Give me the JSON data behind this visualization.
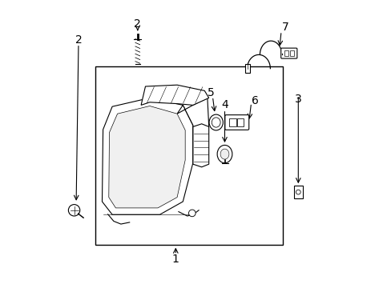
{
  "bg_color": "#ffffff",
  "line_color": "#000000",
  "label_color": "#000000",
  "font_size": 10
}
